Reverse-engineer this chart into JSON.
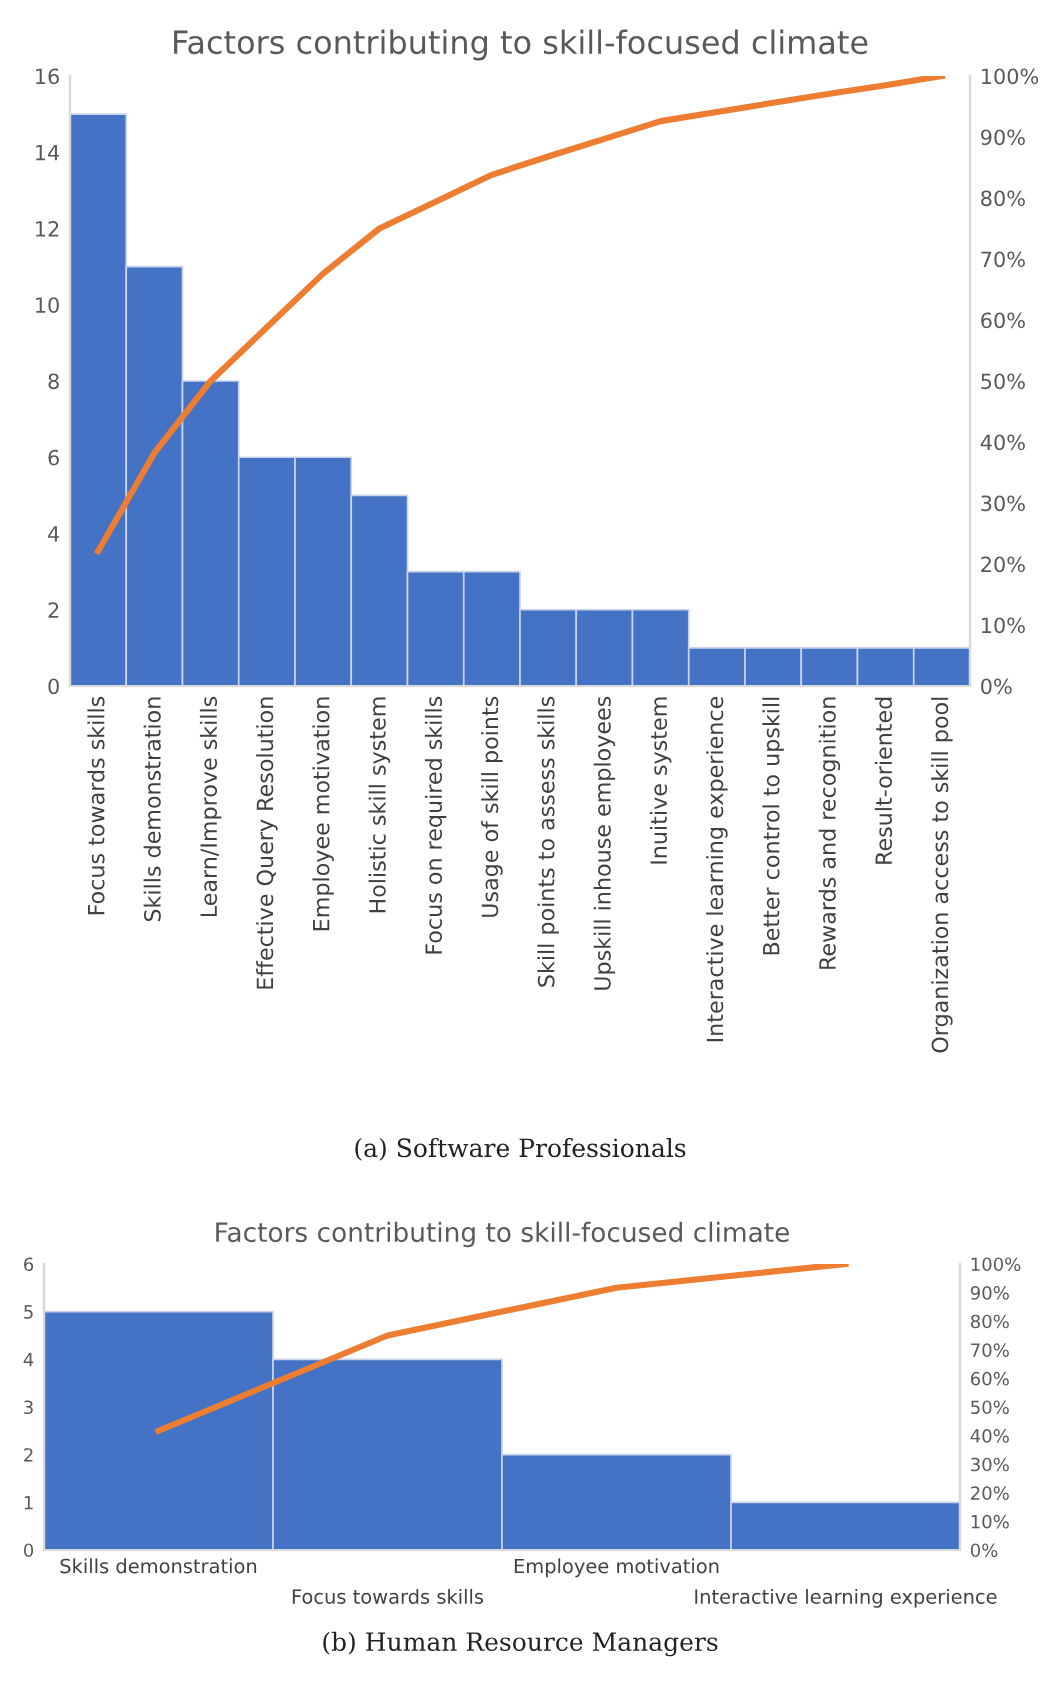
{
  "chart_data": [
    {
      "type": "bar",
      "title": "Factors contributing to skill-focused climate",
      "categories": [
        "Focus towards skills",
        "Skills demonstration",
        "Learn/Improve skills",
        "Effective Query Resolution",
        "Employee motivation",
        "Holistic skill system",
        "Focus on required skills",
        "Usage of skill points",
        "Skill points to assess skills",
        "Upskill inhouse employees",
        "Inuitive system",
        "Interactive learning experience",
        "Better control to upskill",
        "Rewards and recognition",
        "Result-oriented",
        "Organization access to skill pool"
      ],
      "series": [
        {
          "color": "#4472c4",
          "values": [
            15,
            11,
            8,
            6,
            6,
            5,
            3,
            3,
            2,
            2,
            2,
            1,
            1,
            1,
            1,
            1
          ]
        },
        {
          "type": "line",
          "axis": "y2",
          "color": "#ed7d31",
          "values": [
            22.1,
            38.2,
            50.0,
            58.8,
            67.6,
            75.0,
            79.4,
            83.8,
            86.8,
            89.7,
            92.6,
            94.1,
            95.6,
            97.1,
            98.5,
            100
          ]
        }
      ],
      "ylim": [
        0,
        16
      ],
      "yticks": [
        0,
        2,
        4,
        6,
        8,
        10,
        12,
        14,
        16
      ],
      "y2lim": [
        0,
        100
      ],
      "y2ticks": [
        {
          "value": 0,
          "label": "0%"
        },
        {
          "value": 10,
          "label": "10%"
        },
        {
          "value": 20,
          "label": "20%"
        },
        {
          "value": 30,
          "label": "30%"
        },
        {
          "value": 40,
          "label": "40%"
        },
        {
          "value": 50,
          "label": "50%"
        },
        {
          "value": 60,
          "label": "60%"
        },
        {
          "value": 70,
          "label": "70%"
        },
        {
          "value": 80,
          "label": "80%"
        },
        {
          "value": 90,
          "label": "90%"
        },
        {
          "value": 100,
          "label": "100%"
        }
      ],
      "grid": false,
      "annotations": [
        "(a) Software Professionals"
      ]
    },
    {
      "type": "bar",
      "title": "Factors contributing to skill-focused climate",
      "categories": [
        "Skills demonstration",
        "Focus towards skills",
        "Employee motivation",
        "Interactive learning experience"
      ],
      "series": [
        {
          "color": "#4472c4",
          "values": [
            5,
            4,
            2,
            1
          ]
        },
        {
          "type": "line",
          "axis": "y2",
          "color": "#ed7d31",
          "values": [
            41.7,
            75,
            91.7,
            100
          ]
        }
      ],
      "ylim": [
        0,
        6
      ],
      "yticks": [
        0,
        1,
        2,
        3,
        4,
        5,
        6
      ],
      "y2lim": [
        0,
        100
      ],
      "y2ticks": [
        {
          "value": 0,
          "label": "0%"
        },
        {
          "value": 10,
          "label": "10%"
        },
        {
          "value": 20,
          "label": "20%"
        },
        {
          "value": 30,
          "label": "30%"
        },
        {
          "value": 40,
          "label": "40%"
        },
        {
          "value": 50,
          "label": "50%"
        },
        {
          "value": 60,
          "label": "60%"
        },
        {
          "value": 70,
          "label": "70%"
        },
        {
          "value": 80,
          "label": "80%"
        },
        {
          "value": 90,
          "label": "90%"
        },
        {
          "value": 100,
          "label": "100%"
        }
      ],
      "grid": false,
      "annotations": [
        "(b) Human Resource Managers"
      ]
    }
  ]
}
